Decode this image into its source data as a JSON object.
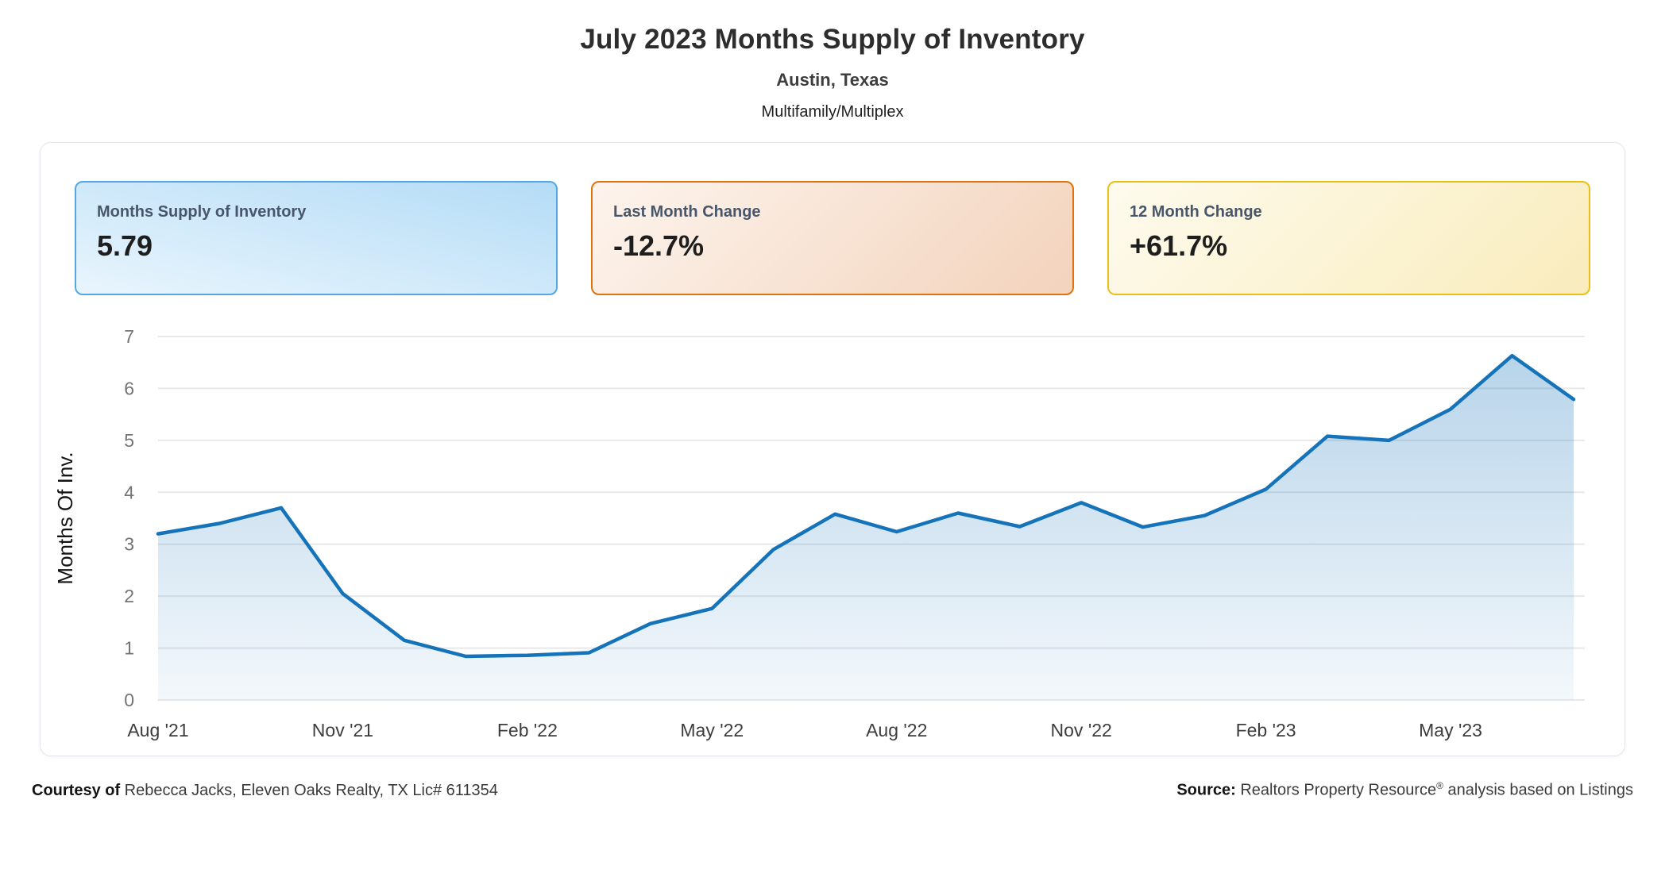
{
  "header": {
    "title": "July 2023 Months Supply of Inventory",
    "location": "Austin, Texas",
    "property_type": "Multifamily/Multiplex"
  },
  "stats": {
    "msi": {
      "label": "Months Supply of Inventory",
      "value": "5.79"
    },
    "last_month": {
      "label": "Last Month Change",
      "value": "-12.7%"
    },
    "twelve_month": {
      "label": "12 Month Change",
      "value": "+61.7%"
    }
  },
  "footer": {
    "courtesy_label": "Courtesy of",
    "courtesy_text": " Rebecca Jacks, Eleven Oaks Realty, TX Lic# 611354",
    "source_label": "Source:",
    "source_brand": " Realtors Property Resource",
    "source_reg": "®",
    "source_rest": " analysis based on Listings"
  },
  "colors": {
    "line": "#1573b9",
    "grid": "#e8e8ea",
    "y_tick_text": "#747474",
    "x_tick_text": "#3d3d3d",
    "card_blue_border": "#54a7e4",
    "card_orange_border": "#e0720f",
    "card_gold_border": "#e9c016"
  },
  "chart_data": {
    "type": "area",
    "x": [
      "Aug '21",
      "Sep '21",
      "Oct '21",
      "Nov '21",
      "Dec '21",
      "Jan '22",
      "Feb '22",
      "Mar '22",
      "Apr '22",
      "May '22",
      "Jun '22",
      "Jul '22",
      "Aug '22",
      "Sep '22",
      "Oct '22",
      "Nov '22",
      "Dec '22",
      "Jan '23",
      "Feb '23",
      "Mar '23",
      "Apr '23",
      "May '23",
      "Jun '23",
      "Jul '23"
    ],
    "values": [
      3.2,
      3.4,
      3.7,
      2.05,
      1.15,
      0.84,
      0.86,
      0.91,
      1.47,
      1.76,
      2.9,
      3.58,
      3.24,
      3.6,
      3.34,
      3.8,
      3.33,
      3.55,
      4.06,
      5.08,
      5.0,
      5.6,
      6.63,
      5.79
    ],
    "title": "July 2023 Months Supply of Inventory",
    "xlabel": "",
    "ylabel": "Months Of Inv.",
    "ylim": [
      0,
      7
    ],
    "y_tick_step": 1,
    "x_tick_every": 3,
    "x_tick_labels": [
      "Aug '21",
      "Nov '21",
      "Feb '22",
      "May '22",
      "Aug '22",
      "Nov '22",
      "Feb '23",
      "May '23"
    ],
    "grid": "horizontal",
    "legend": "none"
  }
}
